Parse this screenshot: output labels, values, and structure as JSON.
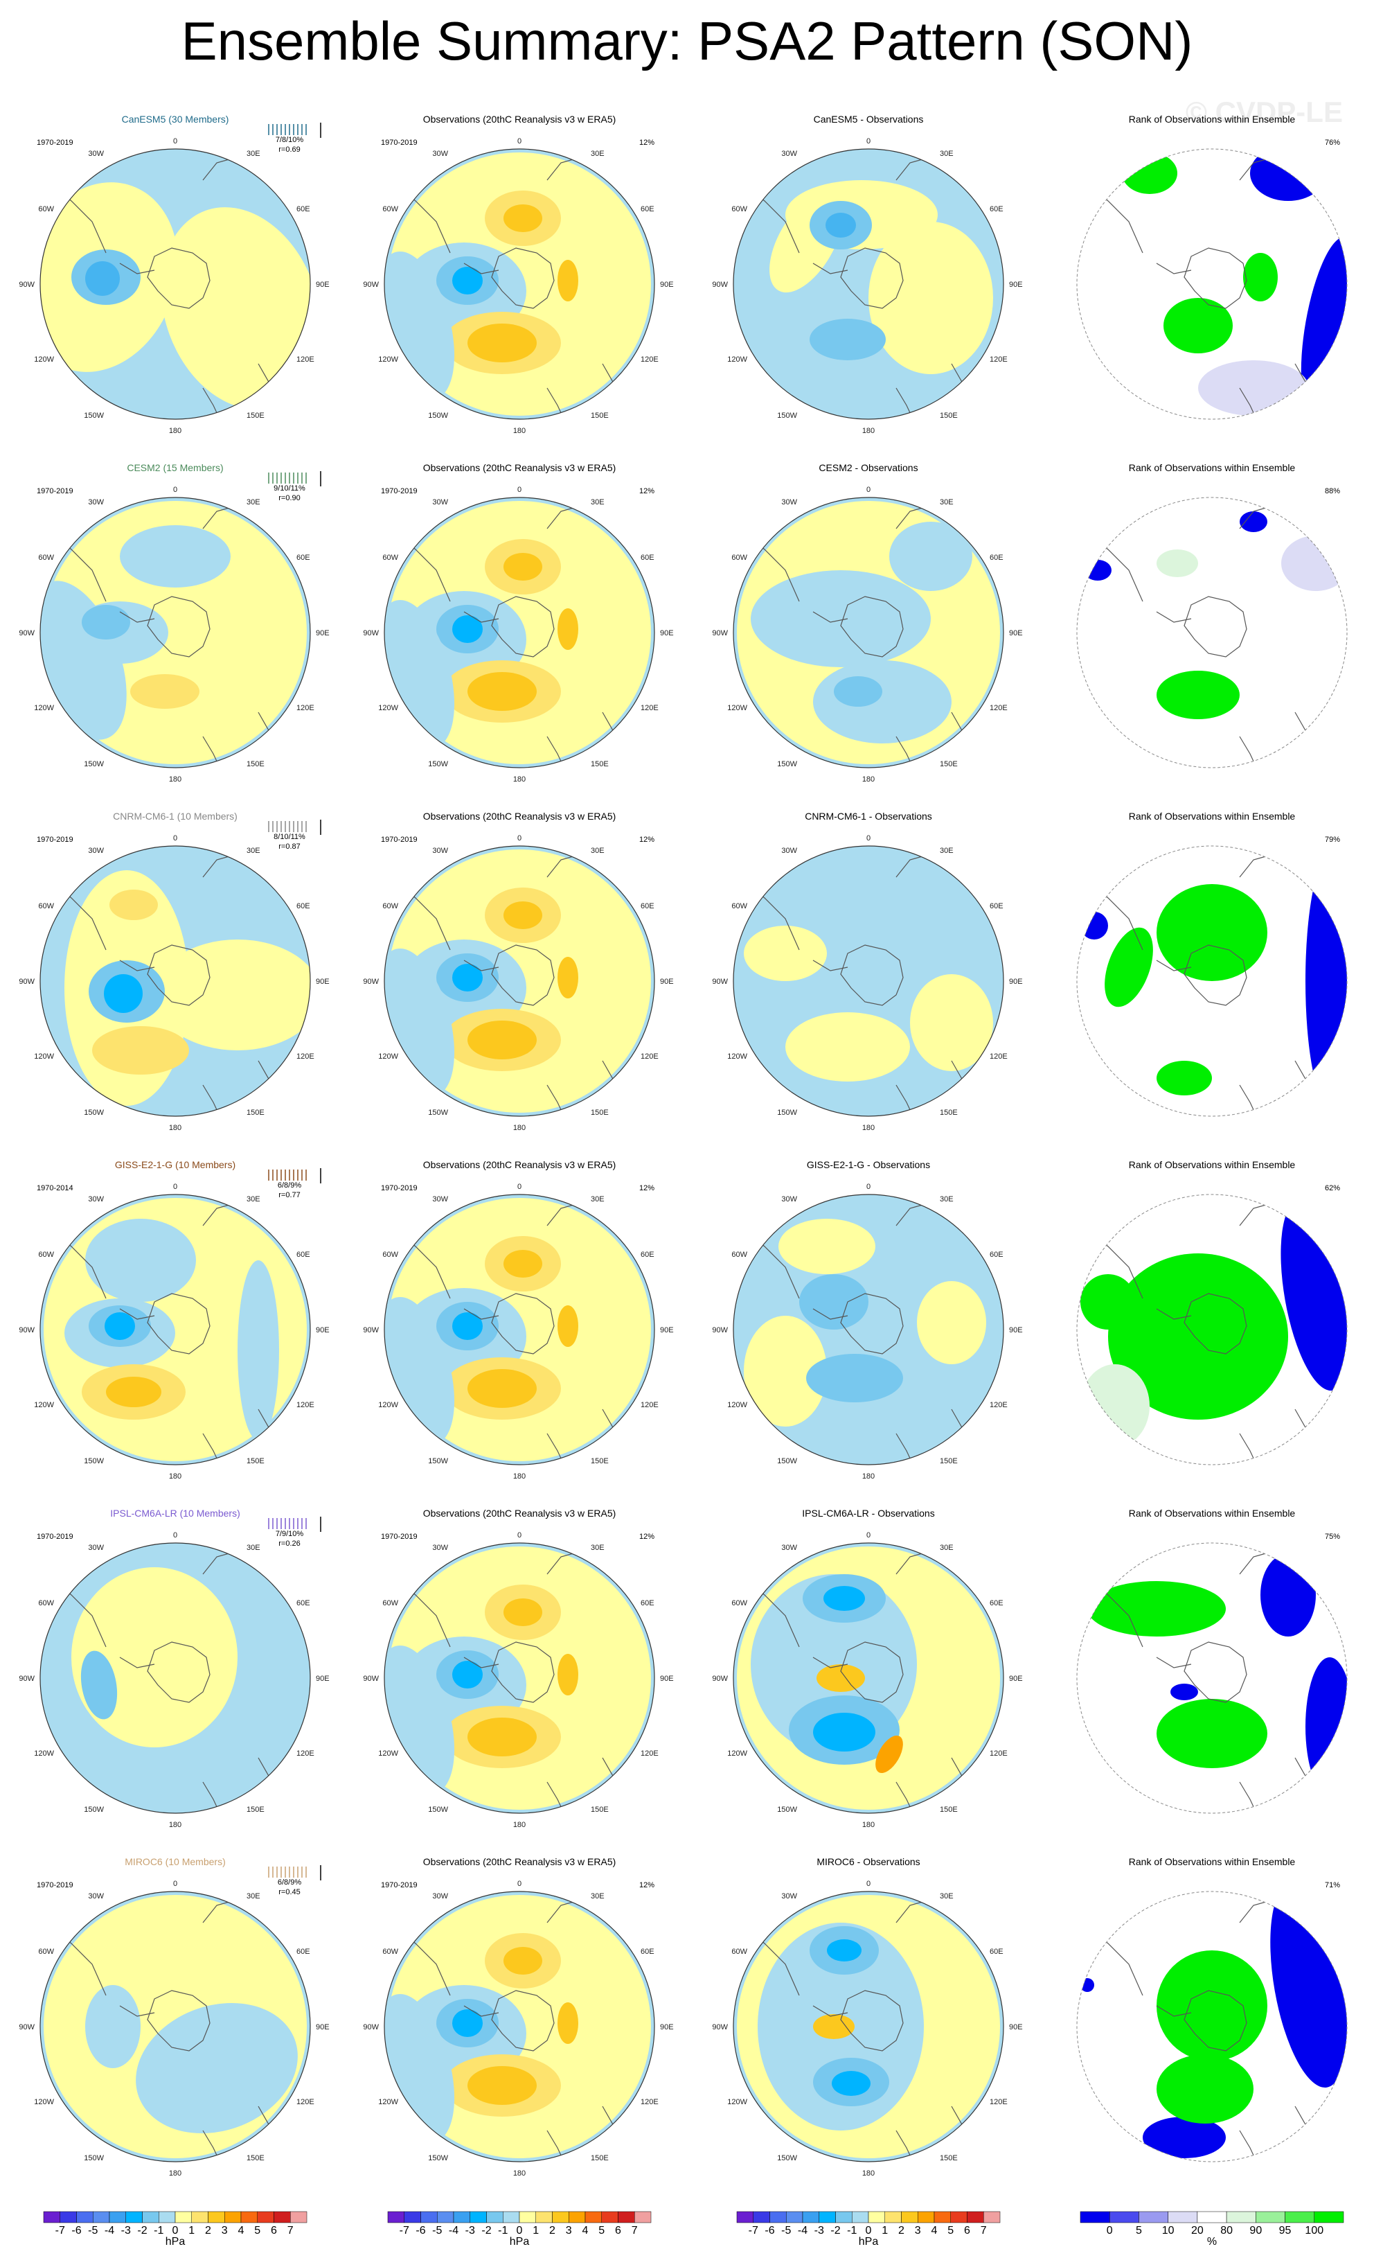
{
  "title": "Ensemble Summary: PSA2 Pattern (SON)",
  "watermark": "© CVDP-LE",
  "colors": {
    "land_bg": "#ffffa0",
    "neg1": "#aadcf0",
    "neg2": "#78c8ee",
    "neg3": "#46b4f0",
    "neg4": "#00b4ff",
    "pos1": "#fde36e",
    "pos2": "#fcc81e",
    "pos3": "#fca300",
    "coast": "#555555",
    "rank_low": "#0000ee",
    "rank_low2": "#4a4aee",
    "rank_mid": "#dcdcf5",
    "rank_hi": "#00ee00",
    "rank_hi2": "#dcf5dc"
  },
  "lon_labels": {
    "top": "0",
    "bottom": "180",
    "ul": "30W",
    "ur": "30E",
    "l1": "60W",
    "r1": "60E",
    "l2": "90W",
    "r2": "90E",
    "l3": "120W",
    "r3": "120E",
    "ll": "150W",
    "lr": "150E"
  },
  "obs_title": "Observations (20thC Reanalysis v3 w ERA5)",
  "obs_pct": "12%",
  "rank_title": "Rank of Observations within Ensemble",
  "rows": [
    {
      "model": "CanESM5 (30 Members)",
      "model_color": "#1f6b8a",
      "years": "1970-2019",
      "obs_years": "1970-2019",
      "stats": "7/8/10%",
      "r": "r=0.69",
      "diff_title": "CanESM5 - Observations",
      "rank_pct": "76%"
    },
    {
      "model": "CESM2 (15 Members)",
      "model_color": "#4a8a5a",
      "years": "1970-2019",
      "obs_years": "1970-2019",
      "stats": "9/10/11%",
      "r": "r=0.90",
      "diff_title": "CESM2 - Observations",
      "rank_pct": "88%"
    },
    {
      "model": "CNRM-CM6-1 (10 Members)",
      "model_color": "#888888",
      "years": "1970-2019",
      "obs_years": "1970-2019",
      "stats": "8/10/11%",
      "r": "r=0.87",
      "diff_title": "CNRM-CM6-1 - Observations",
      "rank_pct": "79%"
    },
    {
      "model": "GISS-E2-1-G (10 Members)",
      "model_color": "#8a4a1a",
      "years": "1970-2014",
      "obs_years": "1970-2019",
      "stats": "6/8/9%",
      "r": "r=0.77",
      "diff_title": "GISS-E2-1-G - Observations",
      "rank_pct": "62%"
    },
    {
      "model": "IPSL-CM6A-LR (10 Members)",
      "model_color": "#7a5ad0",
      "years": "1970-2019",
      "obs_years": "1970-2019",
      "stats": "7/9/10%",
      "r": "r=0.26",
      "diff_title": "IPSL-CM6A-LR - Observations",
      "rank_pct": "75%"
    },
    {
      "model": "MIROC6 (10 Members)",
      "model_color": "#c8a070",
      "years": "1970-2019",
      "obs_years": "1970-2019",
      "stats": "6/8/9%",
      "r": "r=0.45",
      "diff_title": "MIROC6 - Observations",
      "rank_pct": "71%"
    }
  ],
  "colorbar_hpa": {
    "labels": [
      "-7",
      "-6",
      "-5",
      "-4",
      "-3",
      "-2",
      "-1",
      "0",
      "1",
      "2",
      "3",
      "4",
      "5",
      "6",
      "7"
    ],
    "unit": "hPa",
    "colors": [
      "#6a1fd0",
      "#3a3ae6",
      "#4a6ef0",
      "#5a8ef0",
      "#3aa0f0",
      "#00b4ff",
      "#78c8ee",
      "#aadcf0",
      "#ffffa0",
      "#fde36e",
      "#fcc81e",
      "#fca300",
      "#f86a10",
      "#e83c1e",
      "#d01e1e",
      "#f0a0a0"
    ]
  },
  "colorbar_pct": {
    "labels": [
      "0",
      "5",
      "10",
      "20",
      "80",
      "90",
      "95",
      "100"
    ],
    "unit": "%",
    "colors": [
      "#0000ee",
      "#4a4aee",
      "#9a9af0",
      "#dcdcf5",
      "#ffffff",
      "#dcf5dc",
      "#9af09a",
      "#4aee4a",
      "#00ee00"
    ]
  }
}
